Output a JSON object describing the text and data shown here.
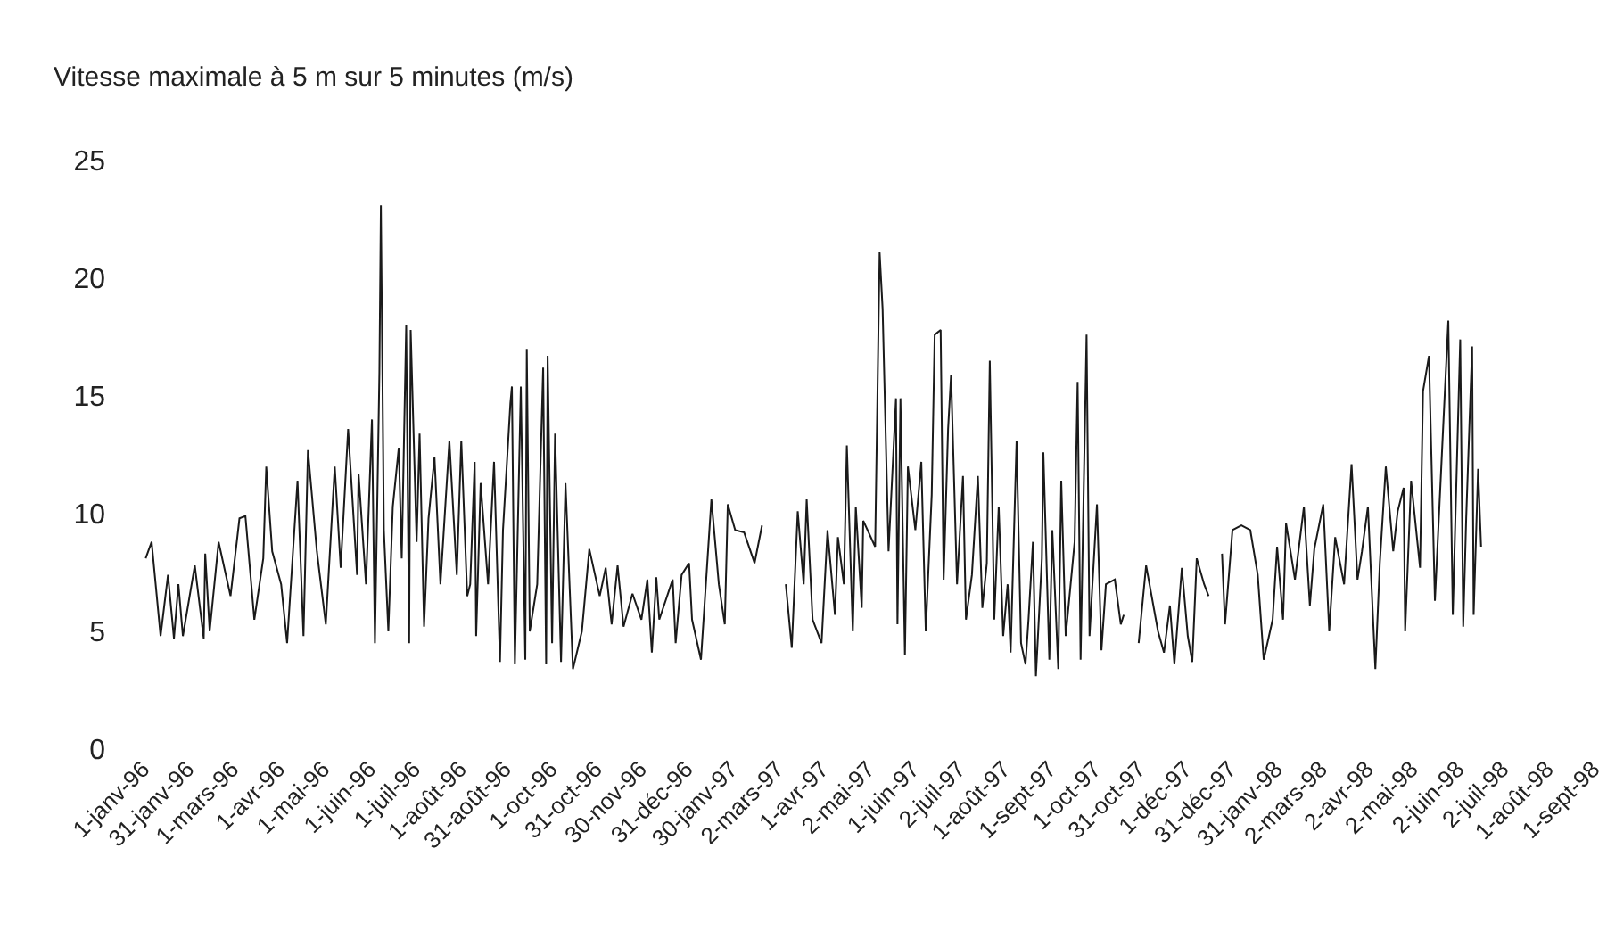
{
  "chart_data": {
    "type": "line",
    "ylabel": "Vitesse maximale à 5 m sur 5 minutes (m/s)",
    "x": [
      "1996-01-03",
      "1996-01-07",
      "1996-01-13",
      "1996-01-18",
      "1996-01-22",
      "1996-01-25",
      "1996-01-28",
      "1996-02-05",
      "1996-02-11",
      "1996-02-12",
      "1996-02-15",
      "1996-02-21",
      "1996-02-29",
      "1996-03-06",
      "1996-03-10",
      "1996-03-16",
      "1996-03-22",
      "1996-03-24",
      "1996-03-28",
      "1996-04-03",
      "1996-04-07",
      "1996-04-14",
      "1996-04-18",
      "1996-04-21",
      "1996-04-27",
      "1996-05-03",
      "1996-05-09",
      "1996-05-13",
      "1996-05-18",
      "1996-05-24",
      "1996-05-25",
      "1996-05-30",
      "1996-06-03",
      "1996-06-05",
      "1996-06-08",
      "1996-06-09",
      "1996-06-11",
      "1996-06-14",
      "1996-06-17",
      "1996-06-21",
      "1996-06-23",
      "1996-06-26",
      "1996-06-28",
      "1996-06-29",
      "1996-07-03",
      "1996-07-05",
      "1996-07-08",
      "1996-07-11",
      "1996-07-15",
      "1996-07-19",
      "1996-07-25",
      "1996-07-30",
      "1996-08-02",
      "1996-08-06",
      "1996-08-08",
      "1996-08-11",
      "1996-08-12",
      "1996-08-15",
      "1996-08-20",
      "1996-08-24",
      "1996-08-28",
      "1996-08-30",
      "1996-09-04",
      "1996-09-05",
      "1996-09-07",
      "1996-09-11",
      "1996-09-14",
      "1996-09-15",
      "1996-09-17",
      "1996-09-22",
      "1996-09-26",
      "1996-09-28",
      "1996-09-29",
      "1996-10-02",
      "1996-10-04",
      "1996-10-08",
      "1996-10-11",
      "1996-10-16",
      "1996-10-22",
      "1996-10-27",
      "1996-11-03",
      "1996-11-07",
      "1996-11-11",
      "1996-11-15",
      "1996-11-19",
      "1996-11-25",
      "1996-12-01",
      "1996-12-05",
      "1996-12-08",
      "1996-12-11",
      "1996-12-13",
      "1996-12-22",
      "1996-12-24",
      "1996-12-28",
      "1997-01-02",
      "1997-01-04",
      "1997-01-10",
      "1997-01-17",
      "1997-01-22",
      "1997-01-26",
      "1997-01-28",
      "1997-02-02",
      "1997-02-08",
      "1997-02-15",
      "1997-02-20",
      "1997-03-01",
      "1997-03-08",
      "1997-03-12",
      "1997-03-16",
      "1997-03-20",
      "1997-03-22",
      "1997-03-26",
      "1997-04-01",
      "1997-04-05",
      "1997-04-10",
      "1997-04-12",
      "1997-04-16",
      "1997-04-18",
      "1997-04-22",
      "1997-04-24",
      "1997-04-28",
      "1997-04-29",
      "1997-05-07",
      "1997-05-10",
      "1997-05-12",
      "1997-05-16",
      "1997-05-21",
      "1997-05-22",
      "1997-05-24",
      "1997-05-27",
      "1997-05-29",
      "1997-06-03",
      "1997-06-07",
      "1997-06-10",
      "1997-06-14",
      "1997-06-16",
      "1997-06-20",
      "1997-06-22",
      "1997-06-25",
      "1997-06-27",
      "1997-07-01",
      "1997-07-05",
      "1997-07-07",
      "1997-07-11",
      "1997-07-15",
      "1997-07-18",
      "1997-07-21",
      "1997-07-23",
      "1997-07-26",
      "1997-07-29",
      "1997-08-01",
      "1997-08-04",
      "1997-08-06",
      "1997-08-10",
      "1997-08-13",
      "1997-08-16",
      "1997-08-18",
      "1997-08-21",
      "1997-08-23",
      "1997-08-27",
      "1997-08-28",
      "1997-09-01",
      "1997-09-03",
      "1997-09-07",
      "1997-09-09",
      "1997-09-12",
      "1997-09-18",
      "1997-09-20",
      "1997-09-22",
      "1997-09-26",
      "1997-09-28",
      "1997-10-03",
      "1997-10-06",
      "1997-10-09",
      "1997-10-15",
      "1997-10-19",
      "1997-10-21",
      "1997-10-25",
      "1997-10-31",
      "1997-11-05",
      "1997-11-13",
      "1997-11-17",
      "1997-11-21",
      "1997-11-24",
      "1997-11-29",
      "1997-12-03",
      "1997-12-06",
      "1997-12-09",
      "1997-12-14",
      "1997-12-17",
      "1997-12-21",
      "1997-12-26",
      "1997-12-28",
      "1998-01-02",
      "1998-01-08",
      "1998-01-14",
      "1998-01-19",
      "1998-01-23",
      "1998-01-29",
      "1998-02-01",
      "1998-02-05",
      "1998-02-07",
      "1998-02-13",
      "1998-02-19",
      "1998-02-23",
      "1998-02-26",
      "1998-03-04",
      "1998-03-08",
      "1998-03-12",
      "1998-03-18",
      "1998-03-23",
      "1998-03-27",
      "1998-03-30",
      "1998-04-03",
      "1998-04-08",
      "1998-04-11",
      "1998-04-15",
      "1998-04-20",
      "1998-04-23",
      "1998-04-27",
      "1998-04-28",
      "1998-05-02",
      "1998-05-08",
      "1998-05-10",
      "1998-05-14",
      "1998-05-18",
      "1998-05-21",
      "1998-05-25",
      "1998-05-27",
      "1998-05-30",
      "1998-06-04",
      "1998-06-06",
      "1998-06-08",
      "1998-06-12",
      "1998-06-13",
      "1998-06-16",
      "1998-06-18"
    ],
    "series": [
      {
        "color": "#1a1a1a",
        "values": [
          8.1,
          8.8,
          4.8,
          7.4,
          4.7,
          7.0,
          4.8,
          7.8,
          4.7,
          8.3,
          5.0,
          8.8,
          6.5,
          9.8,
          9.9,
          5.5,
          8.1,
          12.0,
          8.4,
          7.0,
          4.5,
          11.4,
          4.8,
          12.7,
          8.4,
          5.3,
          12.0,
          7.7,
          13.6,
          7.4,
          11.7,
          7.0,
          14.0,
          4.5,
          16.0,
          23.1,
          9.3,
          5.0,
          10.3,
          12.8,
          8.1,
          18.0,
          4.5,
          17.8,
          8.8,
          13.4,
          5.2,
          9.8,
          12.4,
          7.0,
          13.1,
          7.4,
          13.1,
          6.5,
          7.0,
          12.2,
          4.8,
          11.3,
          7.0,
          12.2,
          3.7,
          9.3,
          14.7,
          15.4,
          3.6,
          15.4,
          3.8,
          17.0,
          5.0,
          7.0,
          16.2,
          3.6,
          16.7,
          4.5,
          13.4,
          3.7,
          11.3,
          3.4,
          5.0,
          8.5,
          6.5,
          7.7,
          5.3,
          7.8,
          5.2,
          6.6,
          5.5,
          7.2,
          4.1,
          7.3,
          5.5,
          7.2,
          4.5,
          7.4,
          7.9,
          5.5,
          3.8,
          10.6,
          7.0,
          5.3,
          10.4,
          9.3,
          9.2,
          7.9,
          9.5,
          null,
          7.0,
          4.3,
          10.1,
          7.0,
          10.6,
          5.5,
          4.5,
          9.3,
          5.7,
          9.0,
          7.0,
          12.9,
          5.0,
          10.3,
          6.0,
          9.7,
          8.6,
          21.1,
          18.7,
          8.4,
          14.9,
          5.3,
          14.9,
          4.0,
          12.0,
          9.3,
          12.2,
          5.0,
          10.8,
          17.6,
          17.8,
          7.2,
          13.6,
          15.9,
          7.0,
          11.6,
          5.5,
          7.4,
          11.6,
          6.0,
          7.9,
          16.5,
          5.5,
          10.3,
          4.8,
          7.0,
          4.1,
          13.1,
          4.5,
          3.6,
          5.5,
          8.8,
          3.1,
          8.1,
          12.6,
          3.8,
          9.3,
          3.4,
          11.4,
          4.8,
          8.8,
          15.6,
          3.8,
          17.6,
          4.8,
          10.4,
          4.2,
          7.0,
          7.2,
          5.3,
          5.7,
          null,
          4.5,
          7.8,
          5.0,
          4.1,
          6.1,
          3.6,
          7.7,
          4.8,
          3.7,
          8.1,
          7.0,
          6.5,
          null,
          8.3,
          5.3,
          9.3,
          9.5,
          9.3,
          7.4,
          3.8,
          5.5,
          8.6,
          5.5,
          9.6,
          7.2,
          10.3,
          6.1,
          8.5,
          10.4,
          5.0,
          9.0,
          7.0,
          12.1,
          7.2,
          8.4,
          10.3,
          3.4,
          7.9,
          12.0,
          8.4,
          10.1,
          11.1,
          5.0,
          11.4,
          7.7,
          15.2,
          16.7,
          6.3,
          10.3,
          15.6,
          18.2,
          5.7,
          17.4,
          5.2,
          9.8,
          17.1,
          5.7,
          11.9,
          8.6
        ]
      }
    ],
    "xlim": [
      "1996-01-01",
      "1998-09-01"
    ],
    "xticks": [
      {
        "value": "1996-01-01",
        "label": "1-janv-96"
      },
      {
        "value": "1996-01-31",
        "label": "31-janv-96"
      },
      {
        "value": "1996-03-01",
        "label": "1-mars-96"
      },
      {
        "value": "1996-04-01",
        "label": "1-avr-96"
      },
      {
        "value": "1996-05-01",
        "label": "1-mai-96"
      },
      {
        "value": "1996-06-01",
        "label": "1-juin-96"
      },
      {
        "value": "1996-07-01",
        "label": "1-juil-96"
      },
      {
        "value": "1996-08-01",
        "label": "1-août-96"
      },
      {
        "value": "1996-08-31",
        "label": "31-août-96"
      },
      {
        "value": "1996-10-01",
        "label": "1-oct-96"
      },
      {
        "value": "1996-10-31",
        "label": "31-oct-96"
      },
      {
        "value": "1996-11-30",
        "label": "30-nov-96"
      },
      {
        "value": "1996-12-31",
        "label": "31-déc-96"
      },
      {
        "value": "1997-01-30",
        "label": "30-janv-97"
      },
      {
        "value": "1997-03-02",
        "label": "2-mars-97"
      },
      {
        "value": "1997-04-01",
        "label": "1-avr-97"
      },
      {
        "value": "1997-05-02",
        "label": "2-mai-97"
      },
      {
        "value": "1997-06-01",
        "label": "1-juin-97"
      },
      {
        "value": "1997-07-02",
        "label": "2-juil-97"
      },
      {
        "value": "1997-08-01",
        "label": "1-août-97"
      },
      {
        "value": "1997-09-01",
        "label": "1-sept-97"
      },
      {
        "value": "1997-10-01",
        "label": "1-oct-97"
      },
      {
        "value": "1997-10-31",
        "label": "31-oct-97"
      },
      {
        "value": "1997-12-01",
        "label": "1-déc-97"
      },
      {
        "value": "1997-12-31",
        "label": "31-déc-97"
      },
      {
        "value": "1998-01-31",
        "label": "31-janv-98"
      },
      {
        "value": "1998-03-02",
        "label": "2-mars-98"
      },
      {
        "value": "1998-04-02",
        "label": "2-avr-98"
      },
      {
        "value": "1998-05-02",
        "label": "2-mai-98"
      },
      {
        "value": "1998-06-02",
        "label": "2-juin-98"
      },
      {
        "value": "1998-07-02",
        "label": "2-juil-98"
      },
      {
        "value": "1998-08-01",
        "label": "1-août-98"
      },
      {
        "value": "1998-09-01",
        "label": "1-sept-98"
      }
    ],
    "ylim": [
      0,
      25
    ],
    "yticks": [
      0,
      5,
      10,
      15,
      20,
      25
    ]
  }
}
